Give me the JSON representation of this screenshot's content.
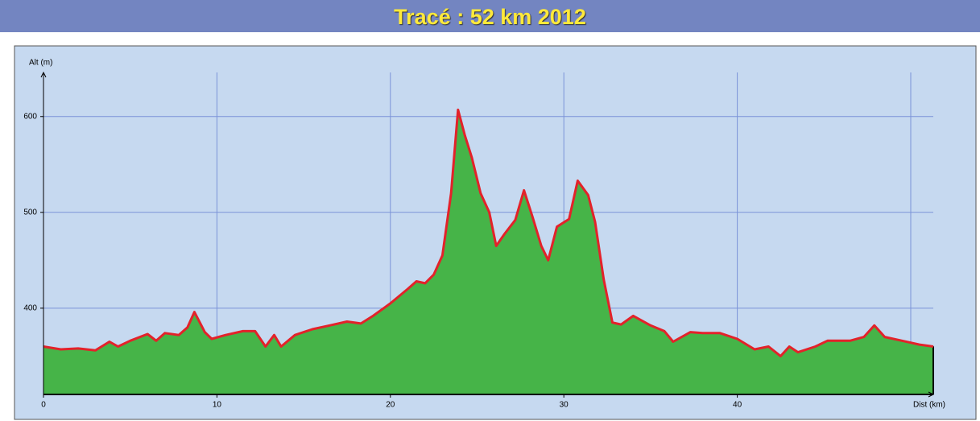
{
  "chart_data": {
    "type": "area",
    "title": "Tracé : 52 km 2012",
    "y_label": "Alt (m)",
    "x_label": "Dist (km)",
    "x": [
      0,
      1,
      2,
      3,
      3.8,
      4.3,
      5,
      6,
      6.5,
      7,
      7.8,
      8.3,
      8.7,
      9.3,
      9.7,
      10.5,
      11.5,
      12.2,
      12.8,
      13.3,
      13.7,
      14.5,
      15.5,
      16.5,
      17.5,
      18.3,
      19,
      20,
      21,
      21.5,
      22,
      22.5,
      23,
      23.5,
      23.9,
      24.3,
      24.7,
      25.2,
      25.7,
      26.1,
      26.6,
      27.2,
      27.7,
      28.2,
      28.7,
      29.1,
      29.6,
      30.3,
      30.8,
      31.4,
      31.8,
      32.3,
      32.8,
      33.3,
      34,
      35,
      35.8,
      36.3,
      37.3,
      38,
      39,
      40,
      41,
      41.8,
      42.5,
      43,
      43.5,
      44.5,
      45.2,
      46.5,
      47.3,
      47.9,
      48.5,
      49.5,
      50,
      50.5,
      51.3
    ],
    "values": [
      360,
      357,
      358,
      356,
      365,
      360,
      366,
      373,
      366,
      374,
      372,
      380,
      396,
      375,
      368,
      372,
      376,
      376,
      360,
      372,
      360,
      372,
      378,
      382,
      386,
      384,
      392,
      405,
      420,
      428,
      426,
      435,
      455,
      520,
      607,
      580,
      557,
      520,
      500,
      465,
      478,
      492,
      523,
      495,
      465,
      450,
      485,
      493,
      533,
      518,
      490,
      430,
      385,
      383,
      392,
      382,
      376,
      365,
      375,
      374,
      374,
      368,
      357,
      360,
      350,
      360,
      354,
      360,
      366,
      366,
      370,
      382,
      370,
      366,
      364,
      362,
      360
    ],
    "fill_color": "#46b448",
    "line_color": "#e3222a",
    "xlim": [
      0,
      51.3
    ],
    "ylim": [
      310,
      646
    ],
    "xticks": [
      0,
      10,
      20,
      30,
      40
    ],
    "yticks": [
      400,
      500,
      600
    ],
    "xgrid": [
      10,
      20,
      30,
      40,
      50
    ],
    "grid": true
  }
}
